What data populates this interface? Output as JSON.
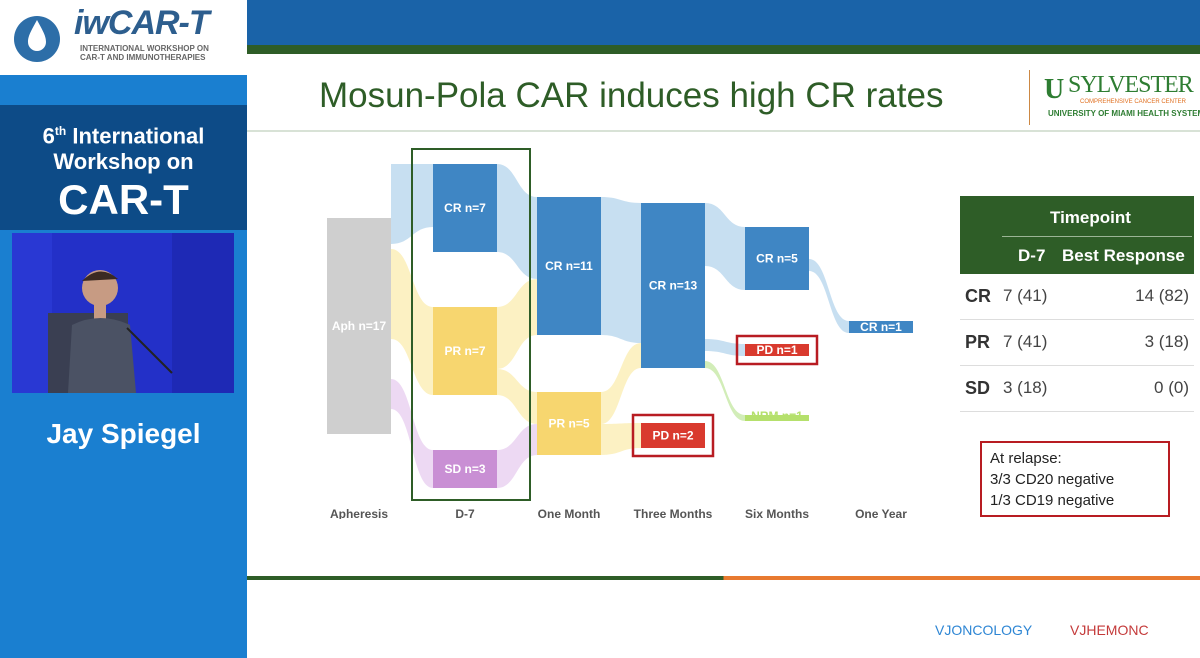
{
  "event": {
    "logo_text": "iwCAR-T",
    "logo_sub1": "INTERNATIONAL WORKSHOP ON",
    "logo_sub2": "CAR-T AND IMMUNOTHERAPIES",
    "workshop_line1": "6",
    "workshop_sup": "th",
    "workshop_line1b": "International",
    "workshop_line2": "Workshop on",
    "workshop_line3": "CAR-T",
    "speaker": "Jay Spiegel"
  },
  "slide": {
    "title": "Mosun-Pola CAR induces high CR rates",
    "institution_name": "SYLVESTER",
    "institution_sub": "COMPREHENSIVE CANCER CENTER",
    "institution_univ": "UNIVERSITY OF MIAMI HEALTH SYSTEM"
  },
  "chart_data": {
    "type": "sankey",
    "timepoints": [
      "Apheresis",
      "D-7",
      "One Month",
      "Three Months",
      "Six Months",
      "One Year"
    ],
    "nodes": [
      {
        "label": "Aph  n=17",
        "category": "Aph",
        "n": 17,
        "timepoint": "Apheresis",
        "color": "#cfcfcf"
      },
      {
        "label": "CR  n=7",
        "category": "CR",
        "n": 7,
        "timepoint": "D-7",
        "color": "#3f86c4"
      },
      {
        "label": "PR  n=7",
        "category": "PR",
        "n": 7,
        "timepoint": "D-7",
        "color": "#f7d66f"
      },
      {
        "label": "SD  n=3",
        "category": "SD",
        "n": 3,
        "timepoint": "D-7",
        "color": "#c98fd4"
      },
      {
        "label": "CR  n=11",
        "category": "CR",
        "n": 11,
        "timepoint": "One Month",
        "color": "#3f86c4"
      },
      {
        "label": "PR  n=5",
        "category": "PR",
        "n": 5,
        "timepoint": "One Month",
        "color": "#f7d66f"
      },
      {
        "label": "CR  n=13",
        "category": "CR",
        "n": 13,
        "timepoint": "Three Months",
        "color": "#3f86c4"
      },
      {
        "label": "PD  n=2",
        "category": "PD",
        "n": 2,
        "timepoint": "Three Months",
        "color": "#d93a2e"
      },
      {
        "label": "CR  n=5",
        "category": "CR",
        "n": 5,
        "timepoint": "Six Months",
        "color": "#3f86c4"
      },
      {
        "label": "PD  n=1",
        "category": "PD",
        "n": 1,
        "timepoint": "Six Months",
        "color": "#d93a2e"
      },
      {
        "label": "NRM  n=1",
        "category": "NRM",
        "n": 1,
        "timepoint": "Six Months",
        "color": "#b5e06c"
      },
      {
        "label": "CR  n=1",
        "category": "CR",
        "n": 1,
        "timepoint": "One Year",
        "color": "#3f86c4"
      }
    ]
  },
  "table": {
    "header_top": "Timepoint",
    "header_d7": "D-7",
    "header_best": "Best Response",
    "rows": [
      {
        "label": "CR",
        "d7": "7 (41)",
        "best": "14 (82)"
      },
      {
        "label": "PR",
        "d7": "7 (41)",
        "best": "3 (18)"
      },
      {
        "label": "SD",
        "d7": "3 (18)",
        "best": "0 (0)"
      }
    ]
  },
  "relapse": {
    "line1": "At relapse:",
    "line2": "3/3 CD20 negative",
    "line3": "1/3 CD19 negative"
  },
  "footer": {
    "brand1": "VJONCOLOGY",
    "brand2": "VJHEMONC"
  }
}
